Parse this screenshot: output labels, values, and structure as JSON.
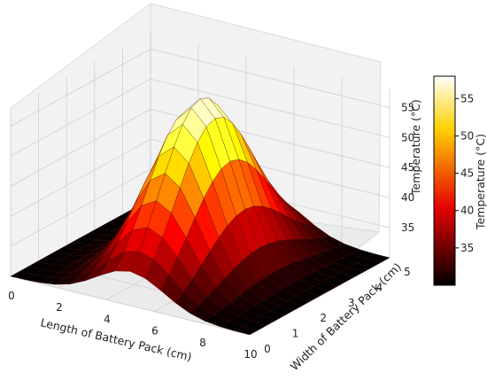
{
  "chart_data": {
    "type": "surface",
    "title": "",
    "xlabel": "Length of Battery Pack (cm)",
    "ylabel": "Width of Battery Pack (cm)",
    "zlabel": "Temperature (°C)",
    "xlim": [
      0,
      10
    ],
    "ylim": [
      0,
      5
    ],
    "zlim": [
      30,
      58
    ],
    "x_ticks": [
      0,
      2,
      4,
      6,
      8,
      10
    ],
    "y_ticks": [
      0,
      1,
      2,
      3,
      4,
      5
    ],
    "z_ticks": [
      35,
      40,
      45,
      50,
      55
    ],
    "grid": true,
    "colormap": "hot",
    "colorbar": {
      "label": "Temperature (°C)",
      "ticks": [
        35,
        40,
        45,
        50,
        55
      ],
      "range": [
        30,
        58
      ],
      "placement": "right"
    },
    "surface": {
      "function": "gaussian",
      "baseline": 30,
      "peak": 58,
      "peak_location": {
        "x": 5,
        "y": 2.5
      },
      "spread": 1.4
    }
  }
}
